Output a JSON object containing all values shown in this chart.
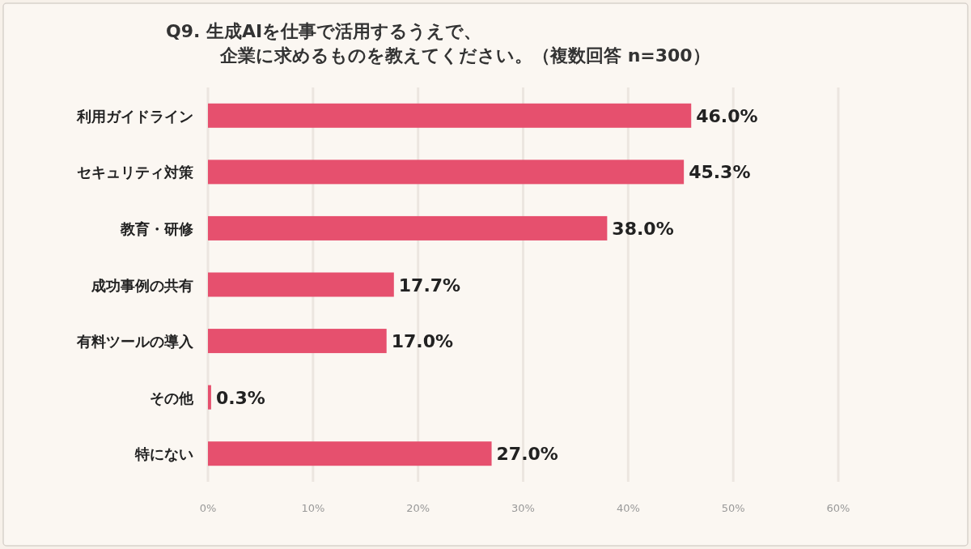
{
  "chart_data": {
    "type": "bar",
    "orientation": "horizontal",
    "title": "Q9. 生成AIを仕事で活用するうえで、",
    "subtitle": "企業に求めるものを教えてください。（複数回答 n=300）",
    "categories": [
      "利用ガイドライン",
      "セキュリティ対策",
      "教育・研修",
      "成功事例の共有",
      "有料ツールの導入",
      "その他",
      "特にない"
    ],
    "values": [
      46.0,
      45.3,
      38.0,
      17.7,
      17.0,
      0.3,
      27.0
    ],
    "value_labels": [
      "46.0%",
      "45.3%",
      "38.0%",
      "17.7%",
      "17.0%",
      "0.3%",
      "27.0%"
    ],
    "color": "#e6506e",
    "xlim": [
      0,
      60
    ],
    "xticks": [
      {
        "value": 0,
        "label": "0%"
      },
      {
        "value": 10,
        "label": "10%"
      },
      {
        "value": 20,
        "label": "20%"
      },
      {
        "value": 30,
        "label": "30%"
      },
      {
        "value": 40,
        "label": "40%"
      },
      {
        "value": 50,
        "label": "50%"
      },
      {
        "value": 60,
        "label": "60%"
      }
    ],
    "grid": "x"
  }
}
